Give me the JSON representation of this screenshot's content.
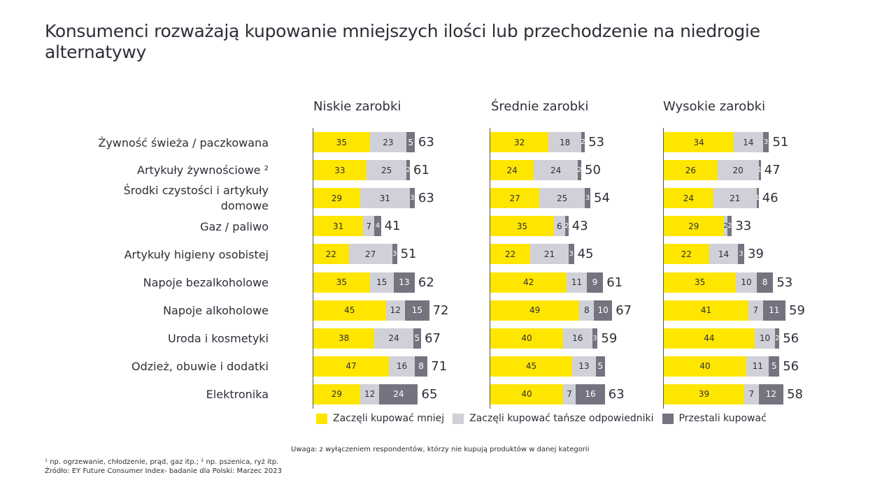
{
  "title": "Konsumenci rozważają kupowanie mniejszych ilości lub przechodzenie na niedrogie alternatywy",
  "legend": [
    {
      "label": "Zaczęli kupować mniej",
      "color": "#ffe600"
    },
    {
      "label": "Zaczęli kupować tańsze odpowiedniki",
      "color": "#d0d0d8"
    },
    {
      "label": "Przestali kupować",
      "color": "#747480"
    }
  ],
  "note": "Uwaga: z wyłączeniem respondentów, którzy nie kupują produktów w danej kategorii",
  "footnote1": "¹ np. ogrzewanie, chłodzenie, prąd, gaz itp.; ² np. pszenica, ryż itp.",
  "source": "Źródło: EY Future Consumer Index-  badanie dla Polski: Marzec 2023",
  "chart_data": {
    "type": "bar",
    "orientation": "horizontal-stacked",
    "title": "Konsumenci rozważają kupowanie mniejszych ilości lub przechodzenie na niedrogie alternatywy",
    "categories": [
      "Żywność świeża / paczkowana",
      "Artykuły żywnościowe ²",
      "Środki czystości i artykuły domowe",
      "Gaz / paliwo",
      "Artykuły higieny osobistej",
      "Napoje bezalkoholowe",
      "Napoje alkoholowe",
      "Uroda i kosmetyki",
      "Odzież, obuwie i dodatki",
      "Elektronika"
    ],
    "series_names": [
      "Zaczęli kupować mniej",
      "Zaczęli kupować tańsze odpowiedniki",
      "Przestali kupować"
    ],
    "panels": [
      {
        "title": "Niskie zarobki",
        "series": [
          {
            "name": "Zaczęli kupować mniej",
            "values": [
              35,
              33,
              29,
              31,
              22,
              35,
              45,
              38,
              47,
              29
            ]
          },
          {
            "name": "Zaczęli kupować tańsze odpowiedniki",
            "values": [
              23,
              25,
              31,
              7,
              27,
              15,
              12,
              24,
              16,
              12
            ]
          },
          {
            "name": "Przestali kupować",
            "values": [
              5,
              2,
              3,
              4,
              3,
              13,
              15,
              5,
              8,
              24
            ]
          }
        ],
        "totals": [
          63,
          61,
          63,
          41,
          51,
          62,
          72,
          67,
          71,
          65
        ]
      },
      {
        "title": "Średnie zarobki",
        "series": [
          {
            "name": "Zaczęli kupować mniej",
            "values": [
              32,
              24,
              27,
              35,
              22,
              42,
              49,
              40,
              45,
              40
            ]
          },
          {
            "name": "Zaczęli kupować tańsze odpowiedniki",
            "values": [
              18,
              24,
              25,
              6,
              21,
              11,
              8,
              16,
              13,
              7
            ]
          },
          {
            "name": "Przestali kupować",
            "values": [
              2,
              2,
              3,
              2,
              3,
              9,
              10,
              3,
              5,
              16
            ]
          }
        ],
        "totals": [
          53,
          50,
          54,
          43,
          45,
          61,
          67,
          59,
          null,
          63
        ]
      },
      {
        "title": "Wysokie zarobki",
        "series": [
          {
            "name": "Zaczęli kupować mniej",
            "values": [
              34,
              26,
              24,
              29,
              22,
              35,
              41,
              44,
              40,
              39
            ]
          },
          {
            "name": "Zaczęli kupować tańsze odpowiedniki",
            "values": [
              14,
              20,
              21,
              2,
              14,
              10,
              7,
              10,
              11,
              7
            ]
          },
          {
            "name": "Przestali kupować",
            "values": [
              3,
              1,
              1,
              2,
              3,
              8,
              11,
              2,
              5,
              12
            ]
          }
        ],
        "totals": [
          51,
          47,
          46,
          33,
          39,
          53,
          59,
          56,
          56,
          58
        ]
      }
    ],
    "xlabel": "",
    "ylabel": "",
    "grid": false,
    "legend_position": "bottom"
  }
}
